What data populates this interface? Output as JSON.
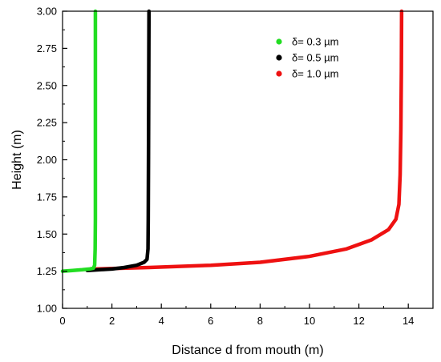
{
  "chart_data": {
    "type": "line",
    "title": "",
    "xlabel": "Distance d from mouth  (m)",
    "ylabel": "Height (m)",
    "xlim": [
      0,
      15
    ],
    "ylim": [
      1.0,
      3.0
    ],
    "xticks": [
      "0",
      "2",
      "4",
      "6",
      "8",
      "10",
      "12",
      "14"
    ],
    "yticks": [
      "1.00",
      "1.25",
      "1.50",
      "1.75",
      "2.00",
      "2.25",
      "2.50",
      "2.75",
      "3.00"
    ],
    "grid": false,
    "legend_position": "top-right",
    "series": [
      {
        "name": "δ= 0.3 µm",
        "color": "#22dd22",
        "points": [
          [
            0.0,
            1.25
          ],
          [
            0.4,
            1.255
          ],
          [
            0.8,
            1.26
          ],
          [
            1.1,
            1.265
          ],
          [
            1.25,
            1.27
          ],
          [
            1.3,
            1.29
          ],
          [
            1.32,
            1.4
          ],
          [
            1.33,
            1.6
          ],
          [
            1.33,
            2.0
          ],
          [
            1.33,
            2.5
          ],
          [
            1.33,
            3.0
          ]
        ]
      },
      {
        "name": "δ= 0.5 µm",
        "color": "#000000",
        "points": [
          [
            1.0,
            1.255
          ],
          [
            1.5,
            1.26
          ],
          [
            2.0,
            1.265
          ],
          [
            2.5,
            1.275
          ],
          [
            3.0,
            1.29
          ],
          [
            3.3,
            1.31
          ],
          [
            3.42,
            1.33
          ],
          [
            3.46,
            1.4
          ],
          [
            3.47,
            1.6
          ],
          [
            3.48,
            2.0
          ],
          [
            3.49,
            2.5
          ],
          [
            3.5,
            3.0
          ]
        ]
      },
      {
        "name": "δ= 1.0 µm",
        "color": "#ee1111",
        "points": [
          [
            1.3,
            1.265
          ],
          [
            3.5,
            1.275
          ],
          [
            6.0,
            1.29
          ],
          [
            8.0,
            1.31
          ],
          [
            10.0,
            1.35
          ],
          [
            11.5,
            1.4
          ],
          [
            12.5,
            1.46
          ],
          [
            13.2,
            1.53
          ],
          [
            13.5,
            1.6
          ],
          [
            13.62,
            1.7
          ],
          [
            13.67,
            1.9
          ],
          [
            13.7,
            2.2
          ],
          [
            13.72,
            2.6
          ],
          [
            13.73,
            3.0
          ]
        ]
      }
    ]
  }
}
